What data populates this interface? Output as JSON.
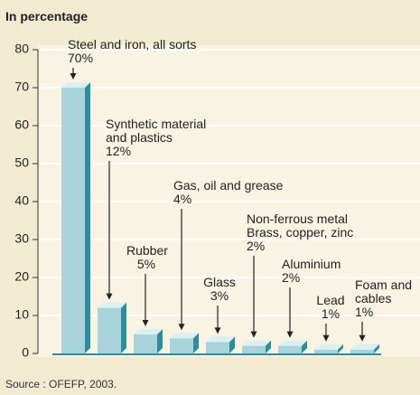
{
  "chart_data": {
    "type": "bar",
    "title": "In percentage",
    "source": "Source : OFEFP, 2003.",
    "categories": [
      "Steel and iron, all sorts",
      "Synthetic material\nand plastics",
      "Rubber",
      "Gas, oil and grease",
      "Glass",
      "Non-ferrous metal\nBrass, copper, zinc",
      "Aluminium",
      "Lead",
      "Foam and\ncables"
    ],
    "values": [
      70,
      12,
      5,
      4,
      3,
      2,
      2,
      1,
      1
    ],
    "value_labels": [
      "70%",
      "12%",
      "5%",
      "4%",
      "3%",
      "2%",
      "2%",
      "1%",
      "1%"
    ],
    "color": "#a9d3db",
    "ylim": [
      0,
      80
    ],
    "yticks": [
      0,
      10,
      20,
      30,
      40,
      50,
      60,
      70,
      80
    ],
    "grid": true
  }
}
